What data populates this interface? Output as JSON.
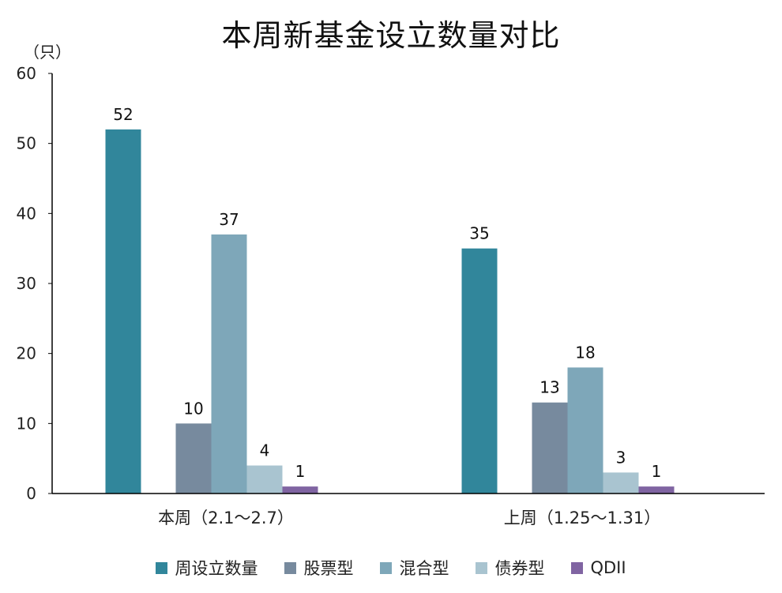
{
  "chart_data": {
    "type": "bar",
    "title": "本周新基金设立数量对比",
    "unit": "（只）",
    "categories": [
      "本周（2.1～2.7）",
      "上周（1.25～1.31）"
    ],
    "series": [
      {
        "name": "周设立数量",
        "color": "#31869b",
        "values": [
          52,
          35
        ]
      },
      {
        "name": "股票型",
        "color": "#778a9e",
        "values": [
          10,
          13
        ]
      },
      {
        "name": "混合型",
        "color": "#7ea7b9",
        "values": [
          37,
          18
        ]
      },
      {
        "name": "债券型",
        "color": "#a9c4d0",
        "values": [
          4,
          3
        ]
      },
      {
        "name": "QDII",
        "color": "#8064a2",
        "values": [
          1,
          1
        ]
      }
    ],
    "ylim": [
      0,
      60
    ],
    "yticks": [
      0,
      10,
      20,
      30,
      40,
      50,
      60
    ],
    "grid": false,
    "legend_position": "bottom"
  }
}
